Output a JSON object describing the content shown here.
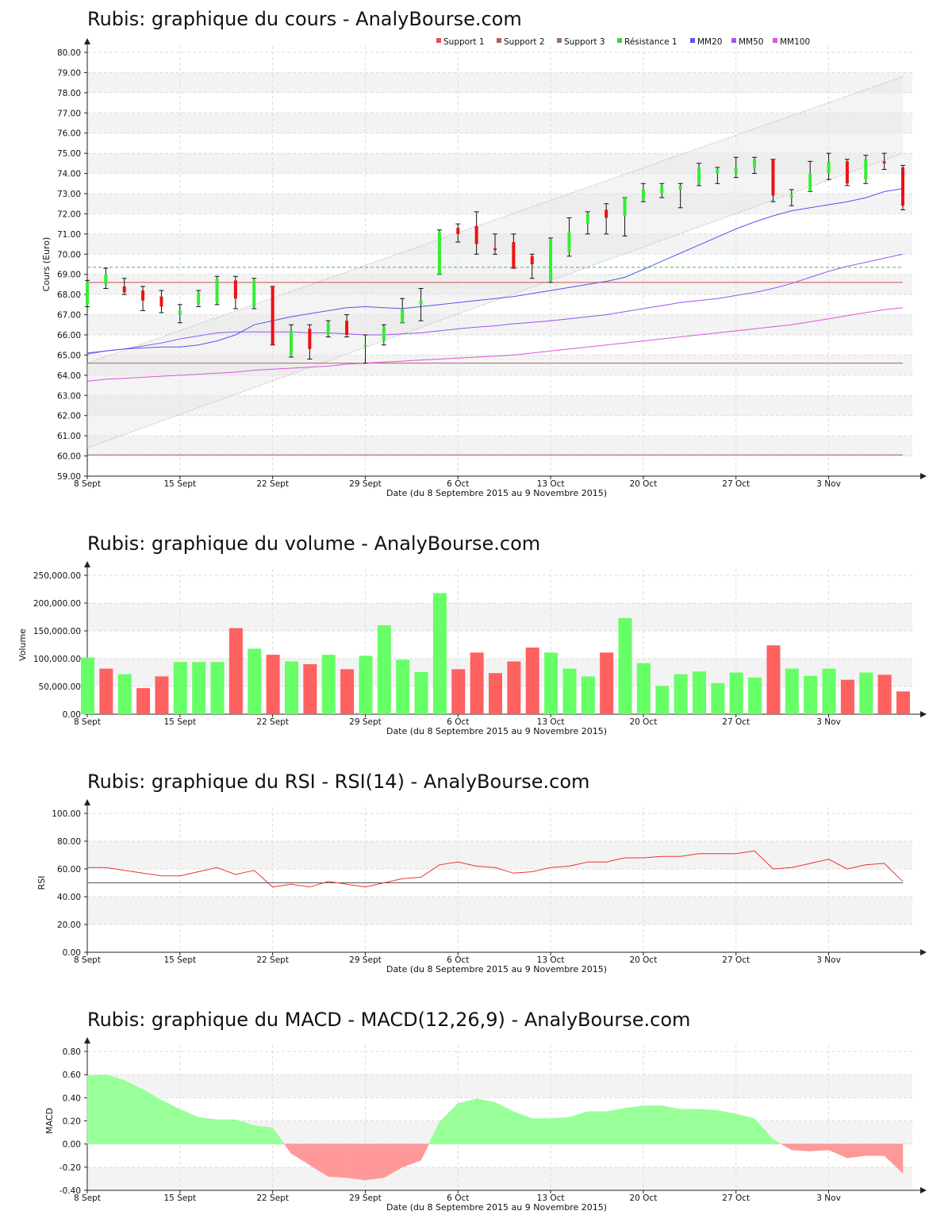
{
  "chart_data": [
    {
      "type": "candlestick",
      "title": "Rubis: graphique du cours - AnalyBourse.com",
      "xlabel": "Date (du 8 Septembre 2015 au 9 Novembre 2015)",
      "ylabel": "Cours (Euro)",
      "ylim": [
        59,
        80
      ],
      "yticks": [
        "59.00",
        "60.00",
        "61.00",
        "62.00",
        "63.00",
        "64.00",
        "65.00",
        "66.00",
        "67.00",
        "68.00",
        "69.00",
        "70.00",
        "71.00",
        "72.00",
        "73.00",
        "74.00",
        "75.00",
        "76.00",
        "77.00",
        "78.00",
        "79.00",
        "80.00"
      ],
      "xticks": [
        {
          "label": "8 Sept",
          "day": 0
        },
        {
          "label": "15 Sept",
          "day": 5
        },
        {
          "label": "22 Sept",
          "day": 10
        },
        {
          "label": "29 Sept",
          "day": 15
        },
        {
          "label": "6 Oct",
          "day": 20
        },
        {
          "label": "13 Oct",
          "day": 25
        },
        {
          "label": "20 Oct",
          "day": 30
        },
        {
          "label": "27 Oct",
          "day": 35
        },
        {
          "label": "3 Nov",
          "day": 40
        }
      ],
      "legend": [
        {
          "name": "Support 1",
          "color": "#e05050"
        },
        {
          "name": "Support 2",
          "color": "#b06060"
        },
        {
          "name": "Support 3",
          "color": "#a07070"
        },
        {
          "name": "Résistance 1",
          "color": "#44cc44"
        },
        {
          "name": "MM20",
          "color": "#5555ee"
        },
        {
          "name": "MM50",
          "color": "#aa55ee"
        },
        {
          "name": "MM100",
          "color": "#dd55dd"
        }
      ],
      "levels": {
        "support1": 68.6,
        "support2": 64.6,
        "support3": 60.05,
        "resistance1": 69.35
      },
      "channel": {
        "upper": [
          64.6,
          78.8
        ],
        "lower": [
          60.4,
          75.0
        ]
      },
      "candles": [
        {
          "o": 67.5,
          "h": 68.7,
          "l": 67.4,
          "c": 68.6
        },
        {
          "o": 68.5,
          "h": 69.3,
          "l": 68.3,
          "c": 69.0
        },
        {
          "o": 68.4,
          "h": 68.8,
          "l": 68.0,
          "c": 68.1
        },
        {
          "o": 68.2,
          "h": 68.4,
          "l": 67.2,
          "c": 67.7
        },
        {
          "o": 67.9,
          "h": 68.2,
          "l": 67.1,
          "c": 67.4
        },
        {
          "o": 67.0,
          "h": 67.5,
          "l": 66.6,
          "c": 67.2
        },
        {
          "o": 67.5,
          "h": 68.2,
          "l": 67.4,
          "c": 68.1
        },
        {
          "o": 67.6,
          "h": 68.9,
          "l": 67.5,
          "c": 68.8
        },
        {
          "o": 68.7,
          "h": 68.9,
          "l": 67.3,
          "c": 67.8
        },
        {
          "o": 67.4,
          "h": 68.8,
          "l": 67.3,
          "c": 68.7
        },
        {
          "o": 68.4,
          "h": 68.4,
          "l": 65.5,
          "c": 65.5
        },
        {
          "o": 65.0,
          "h": 66.5,
          "l": 64.9,
          "c": 66.2
        },
        {
          "o": 66.3,
          "h": 66.5,
          "l": 64.8,
          "c": 65.3
        },
        {
          "o": 66.0,
          "h": 66.7,
          "l": 65.9,
          "c": 66.6
        },
        {
          "o": 66.7,
          "h": 67.0,
          "l": 65.9,
          "c": 66.0
        },
        {
          "o": 65.5,
          "h": 66.0,
          "l": 64.6,
          "c": 65.5
        },
        {
          "o": 65.7,
          "h": 66.5,
          "l": 65.5,
          "c": 66.4
        },
        {
          "o": 66.6,
          "h": 67.8,
          "l": 66.6,
          "c": 67.3
        },
        {
          "o": 67.5,
          "h": 68.3,
          "l": 66.7,
          "c": 67.7
        },
        {
          "o": 69.0,
          "h": 71.2,
          "l": 69.0,
          "c": 71.1
        },
        {
          "o": 71.3,
          "h": 71.5,
          "l": 70.6,
          "c": 71.0
        },
        {
          "o": 71.4,
          "h": 72.1,
          "l": 70.0,
          "c": 70.5
        },
        {
          "o": 70.3,
          "h": 71.0,
          "l": 70.0,
          "c": 70.2
        },
        {
          "o": 70.6,
          "h": 71.0,
          "l": 69.3,
          "c": 69.3
        },
        {
          "o": 69.9,
          "h": 70.0,
          "l": 68.8,
          "c": 69.5
        },
        {
          "o": 68.7,
          "h": 70.8,
          "l": 68.6,
          "c": 70.7
        },
        {
          "o": 70.1,
          "h": 71.8,
          "l": 69.9,
          "c": 71.1
        },
        {
          "o": 71.5,
          "h": 72.1,
          "l": 71.0,
          "c": 72.0
        },
        {
          "o": 72.2,
          "h": 72.5,
          "l": 71.0,
          "c": 71.8
        },
        {
          "o": 71.9,
          "h": 72.8,
          "l": 70.9,
          "c": 72.8
        },
        {
          "o": 72.7,
          "h": 73.5,
          "l": 72.6,
          "c": 73.2
        },
        {
          "o": 73.0,
          "h": 73.5,
          "l": 72.8,
          "c": 73.4
        },
        {
          "o": 73.2,
          "h": 73.5,
          "l": 72.3,
          "c": 73.4
        },
        {
          "o": 73.5,
          "h": 74.5,
          "l": 73.4,
          "c": 74.3
        },
        {
          "o": 74.0,
          "h": 74.3,
          "l": 73.5,
          "c": 74.2
        },
        {
          "o": 74.0,
          "h": 74.8,
          "l": 73.8,
          "c": 74.3
        },
        {
          "o": 74.3,
          "h": 74.8,
          "l": 74.0,
          "c": 74.7
        },
        {
          "o": 74.7,
          "h": 74.7,
          "l": 72.6,
          "c": 72.9
        },
        {
          "o": 72.8,
          "h": 73.2,
          "l": 72.4,
          "c": 72.9
        },
        {
          "o": 73.1,
          "h": 74.6,
          "l": 73.1,
          "c": 74.0
        },
        {
          "o": 74.0,
          "h": 75.0,
          "l": 73.7,
          "c": 74.6
        },
        {
          "o": 74.6,
          "h": 74.7,
          "l": 73.4,
          "c": 73.5
        },
        {
          "o": 73.7,
          "h": 74.9,
          "l": 73.5,
          "c": 74.7
        },
        {
          "o": 74.6,
          "h": 75.0,
          "l": 74.2,
          "c": 74.5
        },
        {
          "o": 74.3,
          "h": 74.4,
          "l": 72.2,
          "c": 72.4
        }
      ],
      "mm20": [
        65.1,
        65.2,
        65.3,
        65.35,
        65.4,
        65.4,
        65.5,
        65.7,
        66.0,
        66.5,
        66.7,
        66.9,
        67.05,
        67.2,
        67.35,
        67.4,
        67.35,
        67.3,
        67.4,
        67.5,
        67.6,
        67.7,
        67.8,
        67.9,
        68.05,
        68.2,
        68.35,
        68.5,
        68.65,
        68.85,
        69.25,
        69.65,
        70.05,
        70.45,
        70.85,
        71.25,
        71.6,
        71.9,
        72.15,
        72.3,
        72.45,
        72.6,
        72.8,
        73.1,
        73.25
      ],
      "mm50": [
        65.05,
        65.2,
        65.3,
        65.45,
        65.6,
        65.8,
        65.95,
        66.1,
        66.15,
        66.15,
        66.15,
        66.15,
        66.1,
        66.1,
        66.05,
        66.0,
        66.0,
        66.05,
        66.1,
        66.2,
        66.3,
        66.38,
        66.45,
        66.55,
        66.62,
        66.7,
        66.8,
        66.9,
        67.0,
        67.15,
        67.3,
        67.45,
        67.6,
        67.7,
        67.8,
        67.95,
        68.1,
        68.3,
        68.55,
        68.85,
        69.15,
        69.4,
        69.6,
        69.8,
        70.0
      ],
      "mm100": [
        63.7,
        63.8,
        63.85,
        63.9,
        63.95,
        64.0,
        64.05,
        64.1,
        64.15,
        64.25,
        64.3,
        64.35,
        64.4,
        64.45,
        64.55,
        64.6,
        64.65,
        64.7,
        64.75,
        64.8,
        64.85,
        64.9,
        64.95,
        65.0,
        65.1,
        65.2,
        65.3,
        65.4,
        65.5,
        65.6,
        65.7,
        65.8,
        65.9,
        66.0,
        66.1,
        66.2,
        66.3,
        66.4,
        66.5,
        66.65,
        66.8,
        66.95,
        67.1,
        67.25,
        67.35
      ]
    },
    {
      "type": "bar",
      "title": "Rubis: graphique du volume - AnalyBourse.com",
      "xlabel": "Date (du 8 Septembre 2015 au 9 Novembre 2015)",
      "ylabel": "Volume",
      "ylim": [
        0,
        250000
      ],
      "yticks": [
        "0.00",
        "50,000.00",
        "100,000.00",
        "150,000.00",
        "200,000.00",
        "250,000.00"
      ],
      "values": [
        102000,
        82000,
        72000,
        47000,
        68000,
        94000,
        94000,
        94000,
        155000,
        118000,
        107000,
        95000,
        90000,
        107000,
        81000,
        105000,
        160000,
        98000,
        76000,
        218000,
        81000,
        111000,
        74000,
        95000,
        120000,
        111000,
        82000,
        68000,
        111000,
        173000,
        92000,
        51000,
        72000,
        77000,
        56000,
        75000,
        66000,
        124000,
        82000,
        69000,
        82000,
        62000,
        75000,
        71000,
        41000
      ],
      "up": [
        1,
        0,
        1,
        0,
        0,
        1,
        1,
        1,
        0,
        1,
        0,
        1,
        0,
        1,
        0,
        1,
        1,
        1,
        1,
        1,
        0,
        0,
        0,
        0,
        0,
        1,
        1,
        1,
        0,
        1,
        1,
        1,
        1,
        1,
        1,
        1,
        1,
        0,
        1,
        1,
        1,
        0,
        1,
        0,
        0
      ]
    },
    {
      "type": "line",
      "title": "Rubis: graphique du RSI - RSI(14) - AnalyBourse.com",
      "xlabel": "Date (du 8 Septembre 2015 au 9 Novembre 2015)",
      "ylabel": "RSI",
      "ylim": [
        0,
        100
      ],
      "yticks": [
        "0.00",
        "20.00",
        "40.00",
        "60.00",
        "80.00",
        "100.00"
      ],
      "reference": 50,
      "values": [
        61,
        61,
        59,
        57,
        55,
        55,
        58,
        61,
        56,
        59,
        47,
        49,
        47,
        51,
        49,
        47,
        50,
        53,
        54,
        63,
        65,
        62,
        61,
        57,
        58,
        61,
        62,
        65,
        65,
        68,
        68,
        69,
        69,
        71,
        71,
        71,
        73,
        60,
        61,
        64,
        67,
        60,
        63,
        64,
        51
      ]
    },
    {
      "type": "area",
      "title": "Rubis: graphique du MACD - MACD(12,26,9) - AnalyBourse.com",
      "xlabel": "Date (du 8 Septembre 2015 au 9 Novembre 2015)",
      "ylabel": "MACD",
      "ylim": [
        -0.4,
        0.8
      ],
      "yticks": [
        "-0.40",
        "-0.20",
        "0.00",
        "0.20",
        "0.40",
        "0.60",
        "0.80"
      ],
      "values": [
        0.59,
        0.6,
        0.55,
        0.47,
        0.38,
        0.3,
        0.23,
        0.21,
        0.21,
        0.16,
        0.14,
        -0.08,
        -0.18,
        -0.28,
        -0.29,
        -0.31,
        -0.29,
        -0.2,
        -0.14,
        0.19,
        0.35,
        0.39,
        0.36,
        0.28,
        0.22,
        0.22,
        0.23,
        0.28,
        0.28,
        0.31,
        0.33,
        0.33,
        0.3,
        0.3,
        0.29,
        0.26,
        0.22,
        0.04,
        -0.05,
        -0.06,
        -0.05,
        -0.12,
        -0.1,
        -0.1,
        -0.25
      ]
    }
  ]
}
